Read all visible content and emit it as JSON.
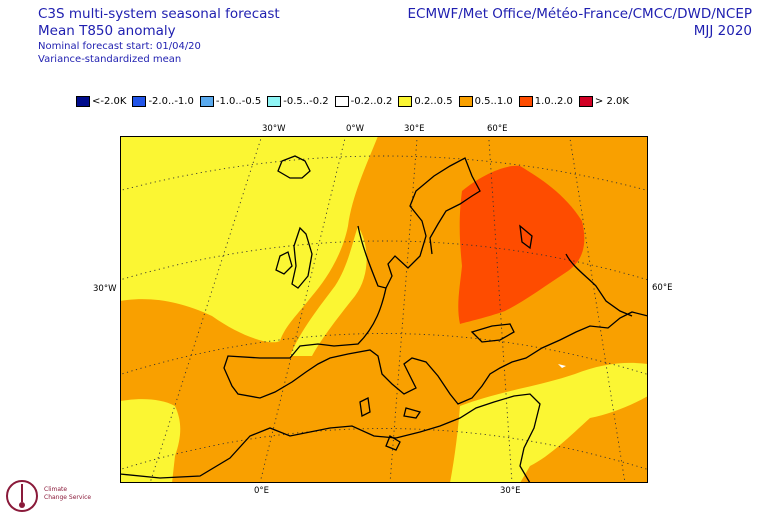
{
  "header": {
    "title_line1": "C3S multi-system seasonal forecast",
    "title_line2": "Mean T850 anomaly",
    "subtitle_line1": "Nominal forecast start: 01/04/20",
    "subtitle_line2": "Variance-standardized mean",
    "providers": "ECMWF/Met Office/Météo-France/CMCC/DWD/NCEP",
    "season": "MJJ 2020"
  },
  "legend": [
    {
      "label": "<-2.0K",
      "color": "#000c8c"
    },
    {
      "label": "-2.0..-1.0",
      "color": "#2255e8"
    },
    {
      "label": "-1.0..-0.5",
      "color": "#5aaaee"
    },
    {
      "label": "-0.5..-0.2",
      "color": "#8ff5f5"
    },
    {
      "label": "-0.2..0.2",
      "color": "#ffffff"
    },
    {
      "label": "0.2..0.5",
      "color": "#fbf633"
    },
    {
      "label": "0.5..1.0",
      "color": "#f9a000"
    },
    {
      "label": "1.0..2.0",
      "color": "#fe4c00"
    },
    {
      "label": "> 2.0K",
      "color": "#d10024"
    }
  ],
  "axis_labels": {
    "top": [
      "30°W",
      "0°W",
      "30°E",
      "60°E"
    ],
    "left": "30°W",
    "right": "60°E",
    "bottom": [
      "0°E",
      "30°E"
    ]
  },
  "logo": {
    "line1": "Climate",
    "line2": "Change Service"
  }
}
